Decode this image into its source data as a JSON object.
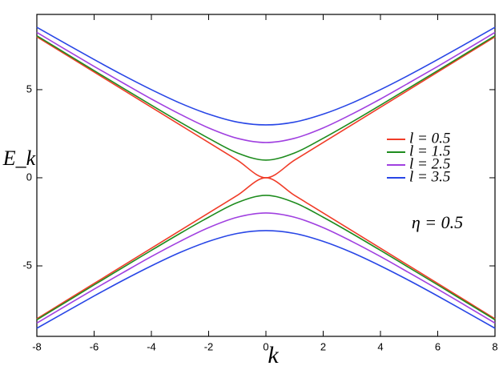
{
  "chart_data": {
    "type": "line",
    "x_label": "k",
    "y_label": "E_k",
    "annotation": "η = 0.5",
    "x": [
      -8,
      -7,
      -6,
      -5,
      -4,
      -3,
      -2,
      -1,
      0,
      1,
      2,
      3,
      4,
      5,
      6,
      7,
      8
    ],
    "series": [
      {
        "name": "l = 0.5",
        "color": "#f03c28",
        "values": [
          8,
          7,
          6,
          5,
          4,
          3,
          2,
          1,
          0,
          1,
          2,
          3,
          4,
          5,
          6,
          7,
          8
        ],
        "lower_values": [
          -8,
          -7,
          -6,
          -5,
          -4,
          -3,
          -2,
          -1,
          0,
          -1,
          -2,
          -3,
          -4,
          -5,
          -6,
          -7,
          -8
        ]
      },
      {
        "name": "l = 1.5",
        "color": "#1e8c1e",
        "values": [
          8.06,
          7.07,
          6.08,
          5.1,
          4.12,
          3.16,
          2.24,
          1.41,
          1,
          1.41,
          2.24,
          3.16,
          4.12,
          5.1,
          6.08,
          7.07,
          8.06
        ],
        "lower_values": [
          -8.06,
          -7.07,
          -6.08,
          -5.1,
          -4.12,
          -3.16,
          -2.24,
          -1.41,
          -1,
          -1.41,
          -2.24,
          -3.16,
          -4.12,
          -5.1,
          -6.08,
          -7.07,
          -8.06
        ]
      },
      {
        "name": "l = 2.5",
        "color": "#a040e0",
        "values": [
          8.25,
          7.28,
          6.32,
          5.39,
          4.47,
          3.61,
          2.83,
          2.24,
          2,
          2.24,
          2.83,
          3.61,
          4.47,
          5.39,
          6.32,
          7.28,
          8.25
        ],
        "lower_values": [
          -8.25,
          -7.28,
          -6.32,
          -5.39,
          -4.47,
          -3.61,
          -2.83,
          -2.24,
          -2,
          -2.24,
          -2.83,
          -3.61,
          -4.47,
          -5.39,
          -6.32,
          -7.28,
          -8.25
        ]
      },
      {
        "name": "l = 3.5",
        "color": "#2846e6",
        "values": [
          8.54,
          7.62,
          6.71,
          5.83,
          5,
          4.24,
          3.61,
          3.16,
          3,
          3.16,
          3.61,
          4.24,
          5,
          5.83,
          6.71,
          7.62,
          8.54
        ],
        "lower_values": [
          -8.54,
          -7.62,
          -6.71,
          -5.83,
          -5,
          -4.24,
          -3.61,
          -3.16,
          -3,
          -3.16,
          -3.61,
          -4.24,
          -5,
          -5.83,
          -6.71,
          -7.62,
          -8.54
        ]
      }
    ],
    "xlim": [
      -8,
      8
    ],
    "ylim": [
      -9,
      9.27
    ],
    "xticks": [
      -8,
      -6,
      -4,
      -2,
      0,
      2,
      4,
      6,
      8
    ],
    "yticks": [
      -5,
      0,
      5
    ],
    "legend": "right"
  }
}
